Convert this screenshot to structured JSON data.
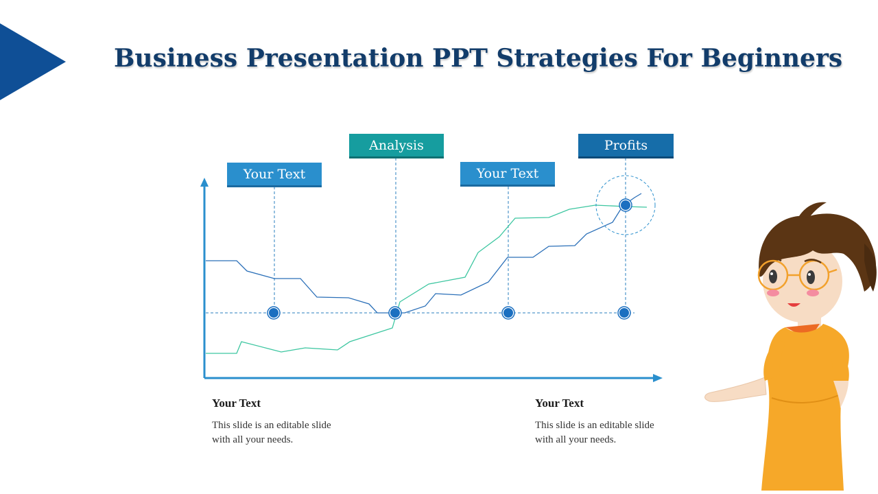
{
  "slide": {
    "title": "Business Presentation PPT Strategies For Beginners",
    "accent_color": "#0f4f96"
  },
  "labels": [
    {
      "text": "Your Text",
      "color": "#2a8fcd"
    },
    {
      "text": "Analysis",
      "color": "#169d9f"
    },
    {
      "text": "Your Text",
      "color": "#2a8fcd"
    },
    {
      "text": "Profits",
      "color": "#166da9"
    }
  ],
  "chart_data": {
    "type": "line",
    "series": [
      {
        "color": "#2a6fb8"
      },
      {
        "color": "#3cc6a0"
      }
    ]
  },
  "text_blocks": {
    "left": {
      "heading": "Your Text",
      "body": "This slide is an editable slide with all your needs."
    },
    "right": {
      "heading": "Your Text",
      "body": "This slide is an editable slide with all your needs."
    }
  },
  "character": {
    "icon": "presenter-woman-illustration"
  }
}
